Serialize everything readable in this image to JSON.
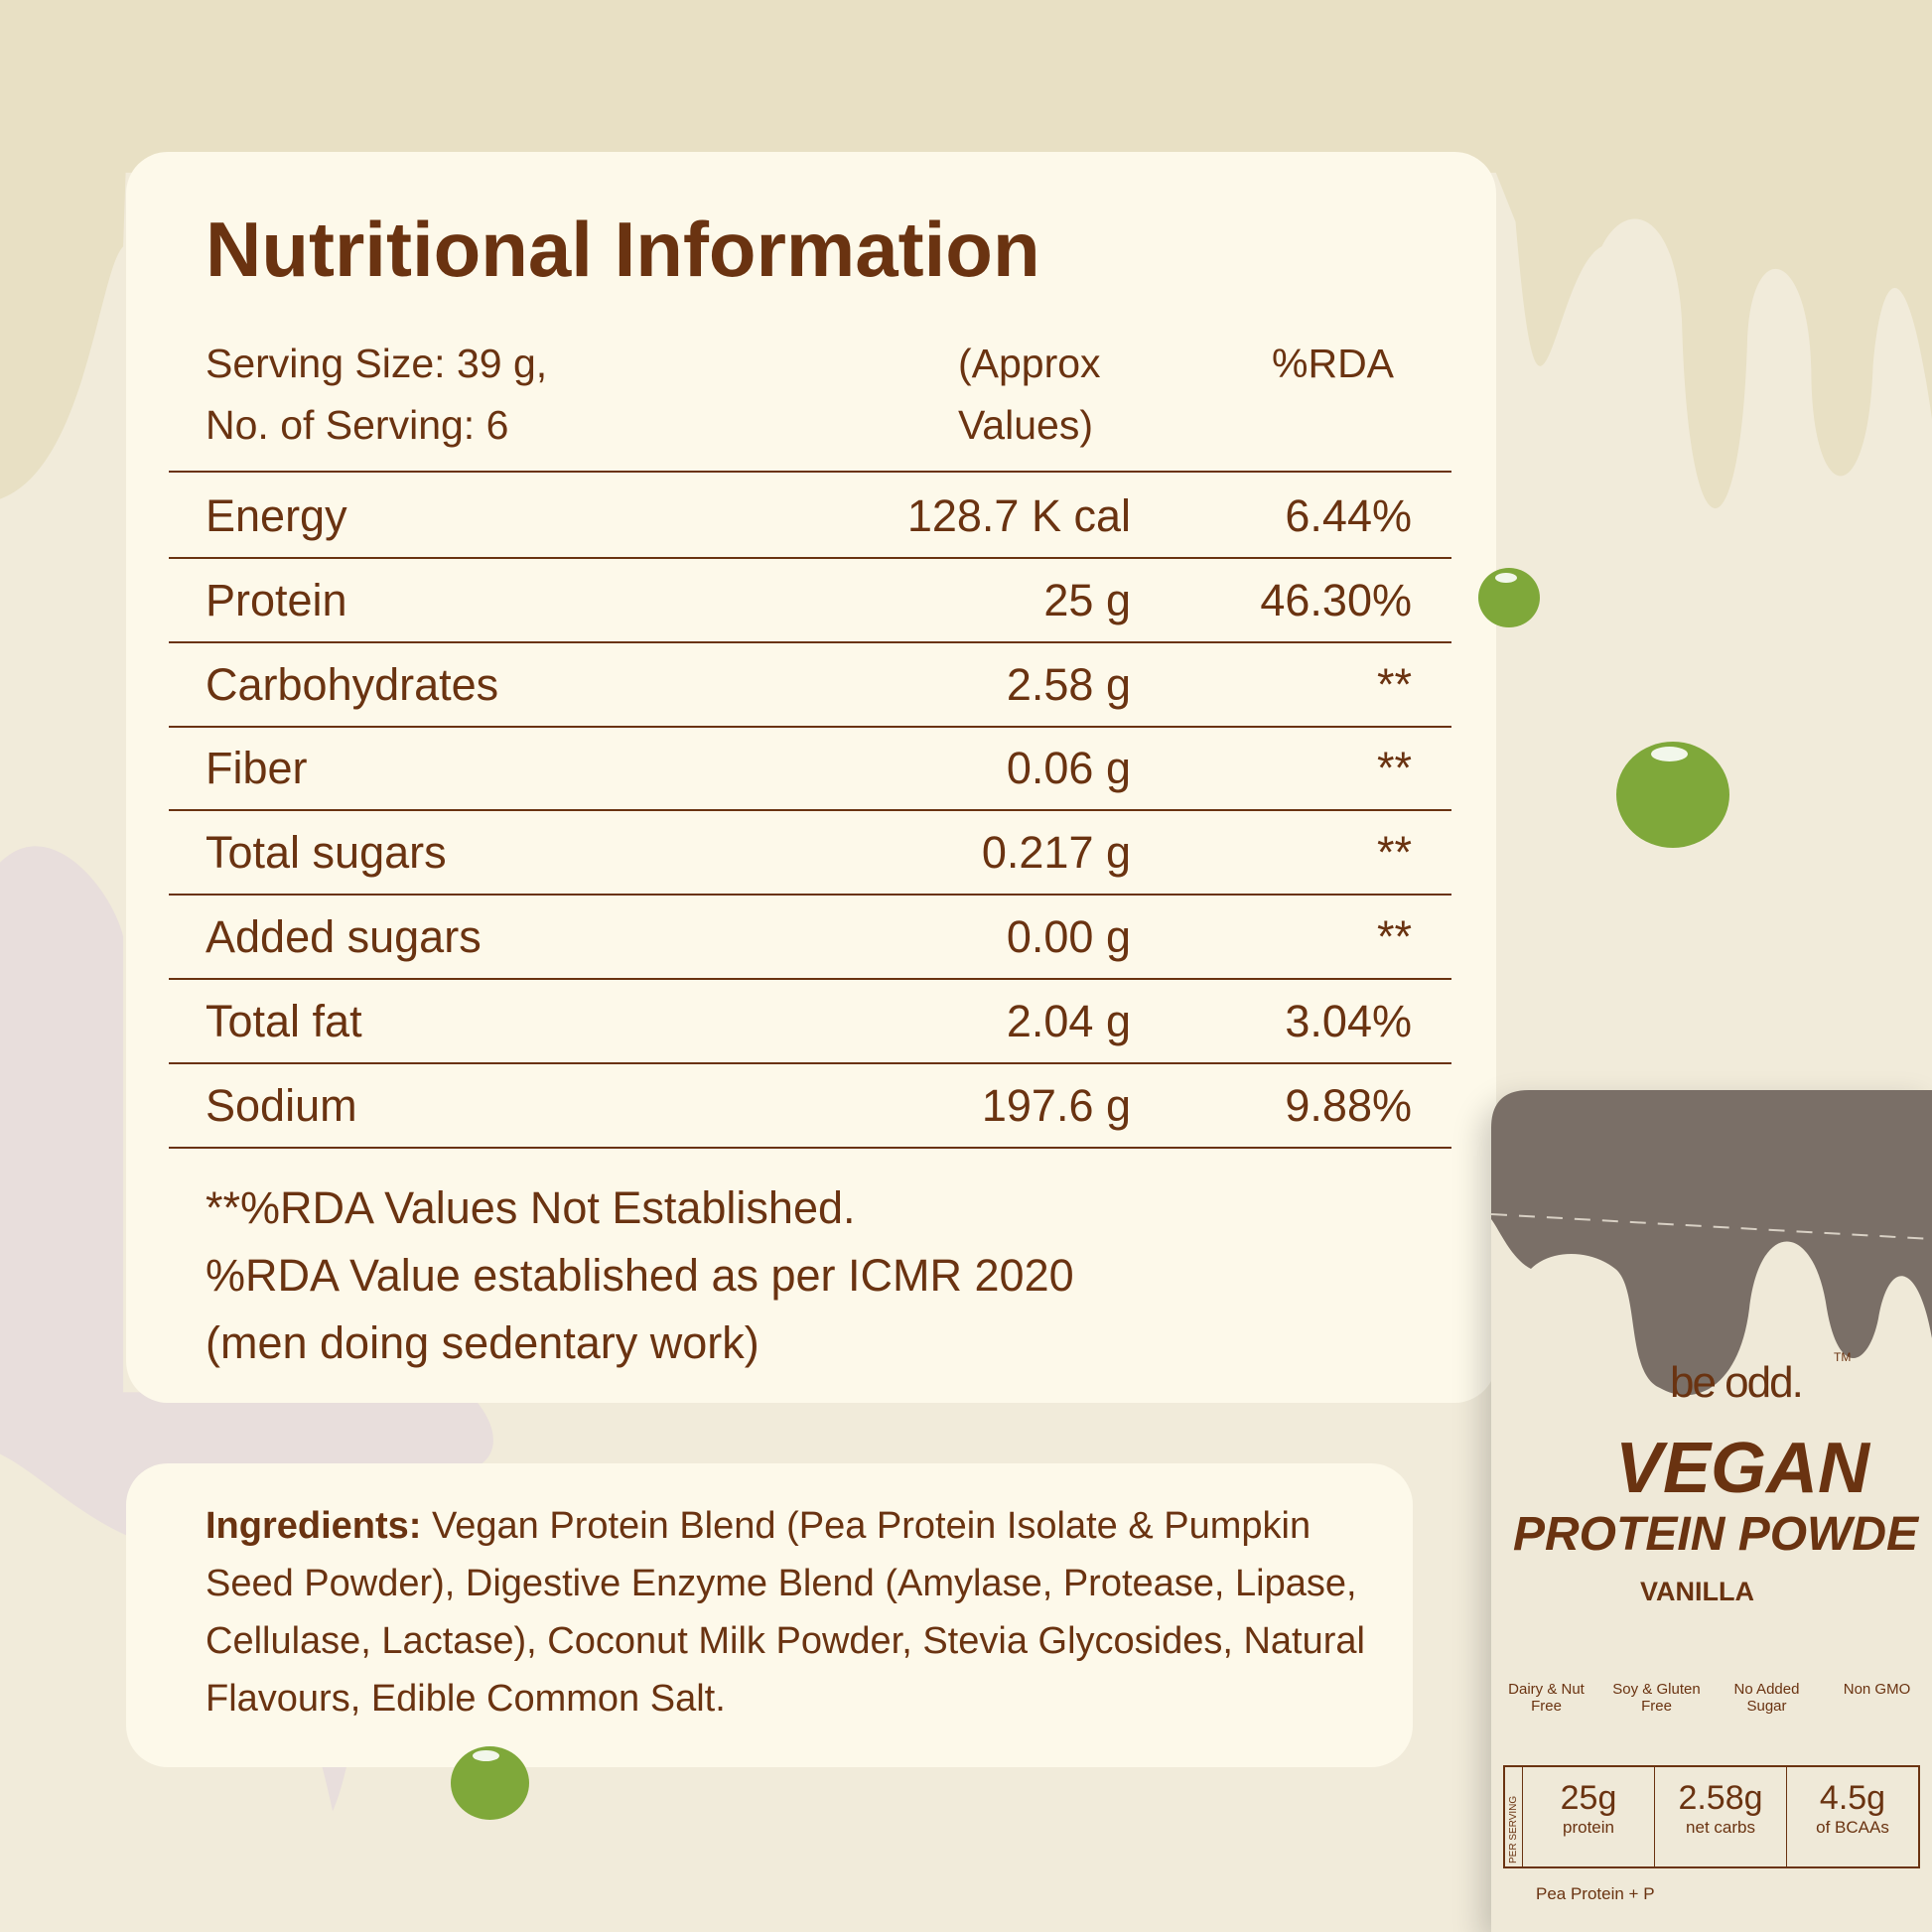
{
  "colors": {
    "text": "#6a3311",
    "card": "#fdf9ea",
    "background_top": "#e8e0c4",
    "background": "#f1ebda",
    "pea": "#7fa83a",
    "pouch_top": "#7a6f67"
  },
  "nutrition": {
    "title": "Nutritional Information",
    "header": {
      "serving_size": "Serving Size: 39 g,",
      "servings": "No. of Serving: 6",
      "approx_line1": "(Approx",
      "approx_line2": "Values)",
      "rda": "%RDA"
    },
    "rows": [
      {
        "name": "Energy",
        "value": "128.7 K cal",
        "rda": "6.44%"
      },
      {
        "name": "Protein",
        "value": "25 g",
        "rda": "46.30%"
      },
      {
        "name": "Carbohydrates",
        "value": "2.58 g",
        "rda": "**"
      },
      {
        "name": "Fiber",
        "value": "0.06 g",
        "rda": "**"
      },
      {
        "name": "Total sugars",
        "value": "0.217 g",
        "rda": "**"
      },
      {
        "name": "Added sugars",
        "value": "0.00 g",
        "rda": "**"
      },
      {
        "name": "Total fat",
        "value": "2.04 g",
        "rda": "3.04%"
      },
      {
        "name": "Sodium",
        "value": "197.6 g",
        "rda": "9.88%"
      }
    ],
    "footnotes": [
      "**%RDA Values Not Established.",
      "%RDA Value established as per ICMR 2020",
      "(men doing sedentary work)"
    ]
  },
  "ingredients": {
    "label": "Ingredients:",
    "text": " Vegan Protein Blend (Pea Protein Isolate & Pumpkin Seed Powder), Digestive Enzyme Blend (Amylase, Protease, Lipase, Cellulase, Lactase), Coconut Milk Powder, Stevia Glycosides, Natural Flavours, Edible Common Salt."
  },
  "package": {
    "brand": "be odd.",
    "tm": "TM",
    "line1": "VEGAN",
    "line2": "PROTEIN POWDE",
    "flavor": "VANILLA",
    "badges": [
      "Dairy & Nut Free",
      "Soy & Gluten Free",
      "No Added Sugar",
      "Non GMO"
    ],
    "per_serving": "PER SERVING",
    "stats": [
      {
        "value": "25g",
        "label": "protein"
      },
      {
        "value": "2.58g",
        "label": "net carbs"
      },
      {
        "value": "4.5g",
        "label": "of BCAAs"
      }
    ],
    "bottom": "Pea Protein + P"
  }
}
